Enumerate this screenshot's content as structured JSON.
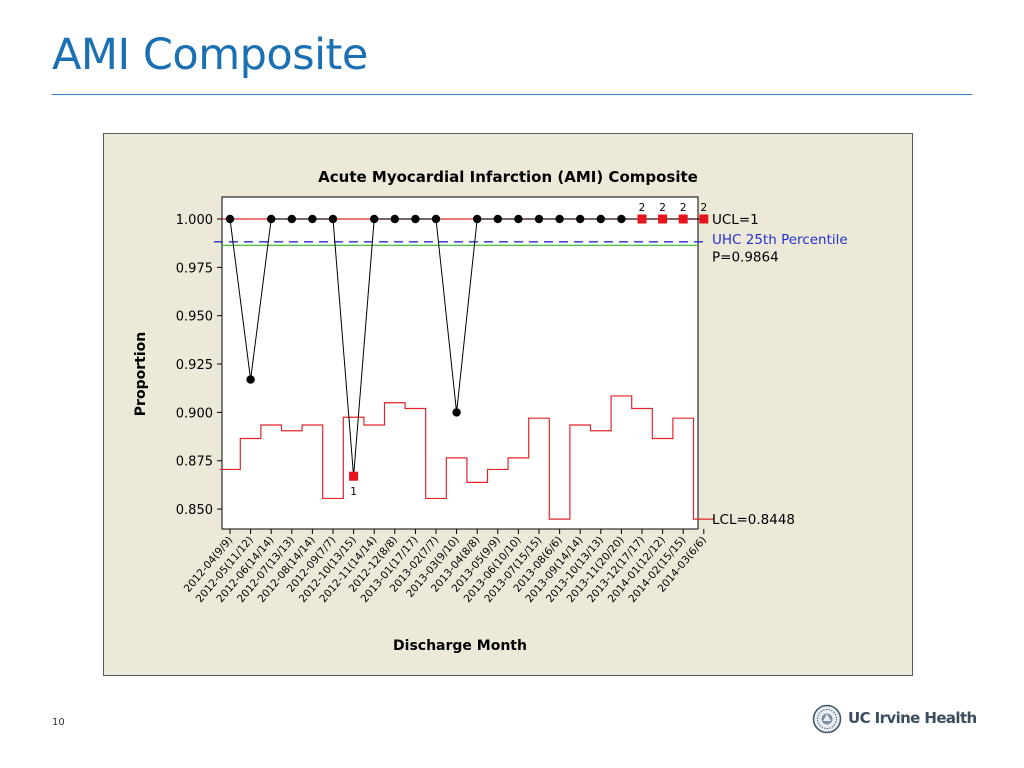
{
  "slide": {
    "title": "AMI Composite",
    "page_number": "10",
    "logo_text": "UC Irvine Health"
  },
  "colors": {
    "accent": "#1b6fb3",
    "chart_background": "#ece9d8",
    "center_line": "#2fb52f",
    "limit_line": "#e0262b",
    "benchmark_line": "#2233cc",
    "point": "#000000",
    "flagged_point": "#e8141b"
  },
  "chart_data": {
    "type": "line",
    "title": "Acute Myocardial Infarction (AMI) Composite",
    "xlabel": "Discharge Month",
    "ylabel": "Proportion",
    "ylim": [
      0.84,
      1.005
    ],
    "yticks": [
      "1.000",
      "0.975",
      "0.950",
      "0.925",
      "0.900",
      "0.875",
      "0.850"
    ],
    "ytick_values": [
      1.0,
      0.975,
      0.95,
      0.925,
      0.9,
      0.875,
      0.85
    ],
    "categories": [
      "2012-04(9/9)",
      "2012-05(11/12)",
      "2012-06(14/14)",
      "2012-07(13/13)",
      "2012-08(14/14)",
      "2012-09(7/7)",
      "2012-10(13/15)",
      "2012-11(14/14)",
      "2012-12(8/8)",
      "2013-01(17/17)",
      "2013-02(7/7)",
      "2013-03(9/10)",
      "2013-04(8/8)",
      "2013-05(9/9)",
      "2013-06(10/10)",
      "2013-07(15/15)",
      "2013-08(6/6)",
      "2013-09(14/14)",
      "2013-10(13/13)",
      "2013-11(20/20)",
      "2013-12(17/17)",
      "2014-01(12/12)",
      "2014-02(15/15)",
      "2014-03(6/6)"
    ],
    "series": [
      {
        "values": [
          1.0,
          0.917,
          1.0,
          1.0,
          1.0,
          1.0,
          0.867,
          1.0,
          1.0,
          1.0,
          1.0,
          0.9,
          1.0,
          1.0,
          1.0,
          1.0,
          1.0,
          1.0,
          1.0,
          1.0,
          1.0,
          1.0,
          1.0,
          1.0
        ],
        "flags": [
          "",
          "",
          "",
          "",
          "",
          "",
          "1",
          "",
          "",
          "",
          "",
          "",
          "",
          "",
          "",
          "",
          "",
          "",
          "",
          "",
          "2",
          "2",
          "2",
          "2"
        ]
      }
    ],
    "lcl": [
      0.8705,
      0.8865,
      0.8935,
      0.8905,
      0.8935,
      0.8555,
      0.8975,
      0.8935,
      0.905,
      0.902,
      0.8555,
      0.8765,
      0.8638,
      0.8705,
      0.8765,
      0.897,
      0.8448,
      0.8935,
      0.8905,
      0.9085,
      0.902,
      0.8865,
      0.897,
      0.8448
    ],
    "reference_lines": [
      {
        "label": "UCL=1",
        "value": 1.0
      },
      {
        "label": "UHC 25th Percentile",
        "value": 0.9882
      },
      {
        "label": "P=0.9864",
        "value": 0.9864
      },
      {
        "label": "LCL=0.8448",
        "value": 0.8448
      }
    ],
    "legend": "right"
  }
}
